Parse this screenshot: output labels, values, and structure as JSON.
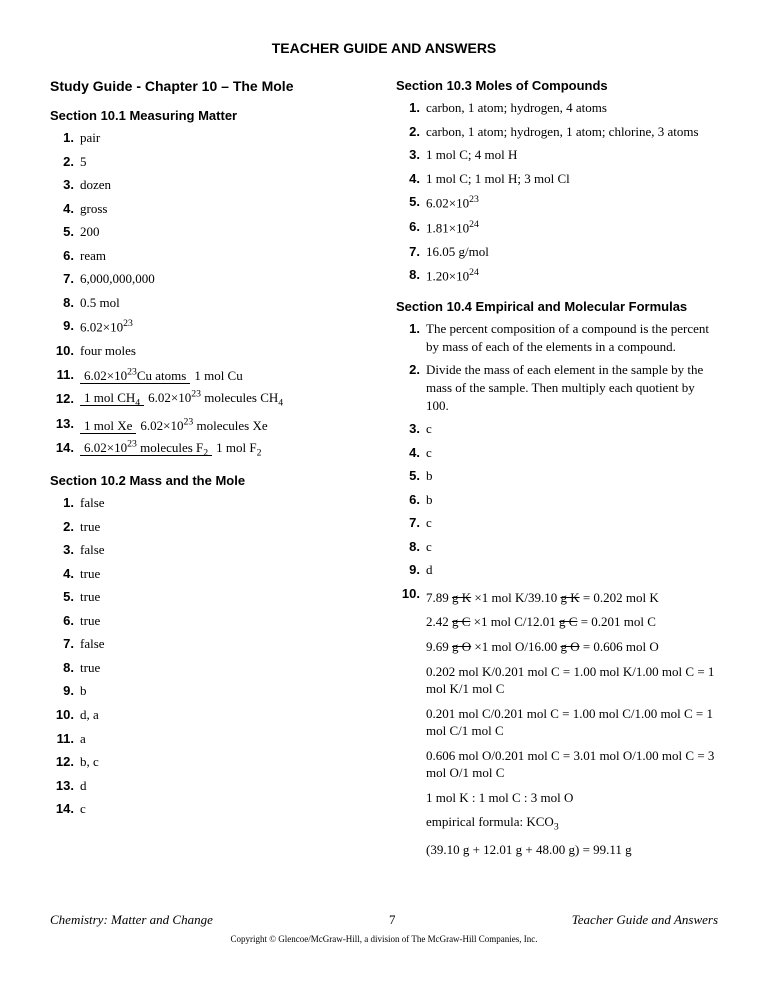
{
  "header": "TEACHER GUIDE AND ANSWERS",
  "chapter": "Study Guide - Chapter 10 – The Mole",
  "section101": {
    "title": "Section 10.1  Measuring Matter",
    "items": [
      "pair",
      "5",
      "dozen",
      "gross",
      "200",
      "ream",
      "6,000,000,000",
      "0.5 mol",
      "6.02×10<sup>23</sup>",
      "four moles",
      "<span class='frac'><span class='top'>6.02×10<sup>23</sup>Cu atoms</span><span class='bot'>1 mol Cu</span></span>",
      "<span class='frac'><span class='top'>1 mol CH<sub>4</sub></span><span class='bot'>6.02×10<sup>23</sup> molecules CH<sub>4</sub></span></span>",
      "<span class='frac'><span class='top'>1 mol Xe</span><span class='bot'>6.02×10<sup>23</sup> molecules Xe</span></span>",
      "<span class='frac'><span class='top'>6.02×10<sup>23</sup> molecules F<sub>2</sub></span><span class='bot'>1 mol F<sub>2</sub></span></span>"
    ]
  },
  "section102": {
    "title": "Section 10.2  Mass and the Mole",
    "items": [
      "false",
      "true",
      "false",
      "true",
      "true",
      "true",
      "false",
      "true",
      "b",
      "d, a",
      "a",
      "b, c",
      "d",
      "c"
    ]
  },
  "section103": {
    "title": "Section 10.3  Moles of Compounds",
    "items": [
      "carbon, 1 atom; hydrogen, 4 atoms",
      "carbon, 1 atom; hydrogen, 1 atom; chlorine, 3 atoms",
      "1 mol C; 4 mol H",
      "1 mol C; 1 mol H; 3 mol Cl",
      "6.02×10<sup>23</sup>",
      "1.81×10<sup>24</sup>",
      "16.05 g/mol",
      "1.20×10<sup>24</sup>"
    ]
  },
  "section104": {
    "title": "Section 10.4  Empirical and Molecular Formulas",
    "items": [
      "The percent composition of a compound is the percent by mass of each of the elements in a compound.",
      "Divide the mass of each element in the sample by the mass of the sample. Then multiply each quotient by 100.",
      "c",
      "c",
      "b",
      "b",
      "c",
      "c",
      "d"
    ],
    "item10": [
      "7.89 <span class='strike'>g K</span> ×1 mol K/39.10 <span class='strike'>g K</span> = 0.202 mol K",
      "2.42 <span class='strike'>g C</span> ×1 mol C/12.01 <span class='strike'>g C</span> = 0.201 mol C",
      "9.69 <span class='strike'>g O</span> ×1 mol O/16.00 <span class='strike'>g O</span> = 0.606 mol O",
      "0.202 mol K/0.201 mol C = 1.00 mol K/1.00 mol C = 1 mol K/1 mol C",
      "0.201 mol C/0.201 mol C = 1.00 mol C/1.00 mol C = 1 mol C/1 mol C",
      "0.606 mol O/0.201 mol C = 3.01 mol O/1.00 mol C = 3 mol O/1 mol C",
      "1 mol K : 1 mol C : 3 mol O",
      "empirical formula: KCO<sub>3</sub>",
      "(39.10 g + 12.01 g + 48.00 g) = 99.11 g"
    ]
  },
  "footer": {
    "left": "Chemistry: Matter and Change",
    "page": "7",
    "right": "Teacher Guide and Answers",
    "copyright": "Copyright © Glencoe/McGraw-Hill, a division of The McGraw-Hill Companies, Inc."
  }
}
